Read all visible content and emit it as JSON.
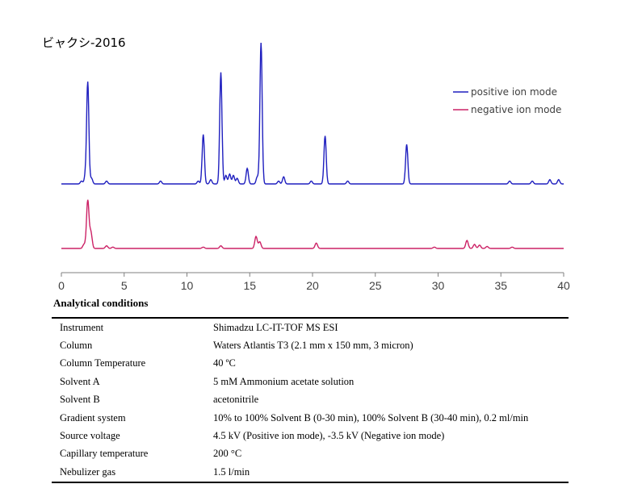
{
  "page": {
    "title": "ビャクシ-2016",
    "conditions_heading": "Analytical conditions"
  },
  "chart_data": {
    "type": "line",
    "title": "ビャクシ-2016",
    "xlabel": "",
    "ylabel": "",
    "xlim": [
      0,
      40
    ],
    "xticks": [
      0,
      5,
      10,
      15,
      20,
      25,
      30,
      35,
      40
    ],
    "legend_position": "top-right",
    "grid": false,
    "series": [
      {
        "name": "positive ion mode",
        "color": "#1f1fbf",
        "baseline": 0.0,
        "peaks": [
          {
            "t": 1.6,
            "h": 0.02
          },
          {
            "t": 1.9,
            "h": 0.05
          },
          {
            "t": 2.1,
            "h": 0.72
          },
          {
            "t": 2.4,
            "h": 0.04
          },
          {
            "t": 3.6,
            "h": 0.02
          },
          {
            "t": 7.9,
            "h": 0.02
          },
          {
            "t": 10.9,
            "h": 0.02
          },
          {
            "t": 11.3,
            "h": 0.35
          },
          {
            "t": 11.9,
            "h": 0.03
          },
          {
            "t": 12.7,
            "h": 0.79
          },
          {
            "t": 13.1,
            "h": 0.06
          },
          {
            "t": 13.4,
            "h": 0.07
          },
          {
            "t": 13.7,
            "h": 0.06
          },
          {
            "t": 14.0,
            "h": 0.04
          },
          {
            "t": 14.8,
            "h": 0.11
          },
          {
            "t": 15.6,
            "h": 0.05
          },
          {
            "t": 15.9,
            "h": 1.0
          },
          {
            "t": 17.7,
            "h": 0.05
          },
          {
            "t": 17.3,
            "h": 0.02
          },
          {
            "t": 19.9,
            "h": 0.02
          },
          {
            "t": 21.0,
            "h": 0.34
          },
          {
            "t": 22.8,
            "h": 0.02
          },
          {
            "t": 27.5,
            "h": 0.28
          },
          {
            "t": 35.7,
            "h": 0.02
          },
          {
            "t": 37.5,
            "h": 0.02
          },
          {
            "t": 38.9,
            "h": 0.03
          },
          {
            "t": 39.6,
            "h": 0.03
          }
        ]
      },
      {
        "name": "negative ion mode",
        "color": "#cc2266",
        "baseline": 0.0,
        "peaks": [
          {
            "t": 1.8,
            "h": 0.03
          },
          {
            "t": 2.1,
            "h": 0.36
          },
          {
            "t": 2.35,
            "h": 0.12
          },
          {
            "t": 3.6,
            "h": 0.02
          },
          {
            "t": 4.1,
            "h": 0.01
          },
          {
            "t": 11.3,
            "h": 0.01
          },
          {
            "t": 12.7,
            "h": 0.02
          },
          {
            "t": 15.5,
            "h": 0.09
          },
          {
            "t": 15.8,
            "h": 0.05
          },
          {
            "t": 20.3,
            "h": 0.04
          },
          {
            "t": 29.7,
            "h": 0.01
          },
          {
            "t": 32.3,
            "h": 0.06
          },
          {
            "t": 32.9,
            "h": 0.03
          },
          {
            "t": 33.3,
            "h": 0.025
          },
          {
            "t": 33.9,
            "h": 0.015
          },
          {
            "t": 35.9,
            "h": 0.01
          }
        ]
      }
    ]
  },
  "conditions": [
    {
      "label": "Instrument",
      "value": "Shimadzu LC-IT-TOF MS ESI"
    },
    {
      "label": "Column",
      "value": "Waters Atlantis T3 (2.1 mm x 150 mm, 3 micron)"
    },
    {
      "label": "Column Temperature",
      "value": "40 ºC"
    },
    {
      "label": "Solvent A",
      "value": "5 mM Ammonium acetate solution"
    },
    {
      "label": "Solvent B",
      "value": "acetonitrile"
    },
    {
      "label": "Gradient system",
      "value": "10% to 100% Solvent B (0-30 min), 100% Solvent B (30-40 min), 0.2 ml/min"
    },
    {
      "label": "Source voltage",
      "value": "4.5 kV (Positive ion mode), -3.5 kV (Negative ion mode)"
    },
    {
      "label": "Capillary temperature",
      "value": "200 °C"
    },
    {
      "label": "Nebulizer gas",
      "value": "1.5 l/min"
    }
  ]
}
